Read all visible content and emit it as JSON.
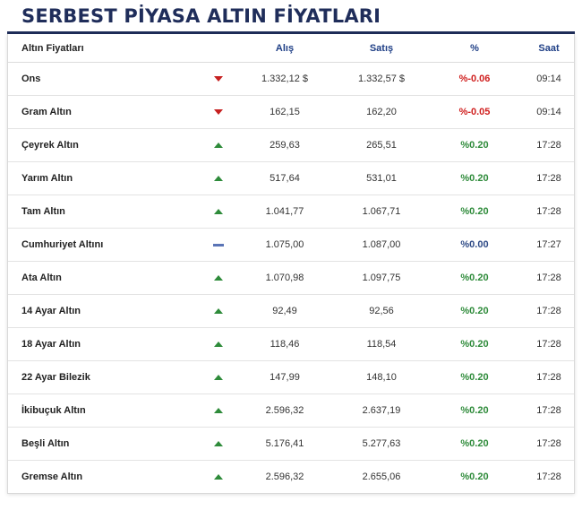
{
  "title": "SERBEST PİYASA ALTIN FİYATLARI",
  "columns": {
    "name": "Altın Fiyatları",
    "buy": "Alış",
    "sell": "Satış",
    "pct": "%",
    "time": "Saat"
  },
  "rows": [
    {
      "name": "Ons",
      "trend": "down",
      "buy": "1.332,12 $",
      "sell": "1.332,57 $",
      "pct": "%-0.06",
      "time": "09:14"
    },
    {
      "name": "Gram Altın",
      "trend": "down",
      "buy": "162,15",
      "sell": "162,20",
      "pct": "%-0.05",
      "time": "09:14"
    },
    {
      "name": "Çeyrek Altın",
      "trend": "up",
      "buy": "259,63",
      "sell": "265,51",
      "pct": "%0.20",
      "time": "17:28"
    },
    {
      "name": "Yarım Altın",
      "trend": "up",
      "buy": "517,64",
      "sell": "531,01",
      "pct": "%0.20",
      "time": "17:28"
    },
    {
      "name": "Tam Altın",
      "trend": "up",
      "buy": "1.041,77",
      "sell": "1.067,71",
      "pct": "%0.20",
      "time": "17:28"
    },
    {
      "name": "Cumhuriyet Altını",
      "trend": "flat",
      "buy": "1.075,00",
      "sell": "1.087,00",
      "pct": "%0.00",
      "time": "17:27"
    },
    {
      "name": "Ata Altın",
      "trend": "up",
      "buy": "1.070,98",
      "sell": "1.097,75",
      "pct": "%0.20",
      "time": "17:28"
    },
    {
      "name": "14 Ayar Altın",
      "trend": "up",
      "buy": "92,49",
      "sell": "92,56",
      "pct": "%0.20",
      "time": "17:28"
    },
    {
      "name": "18 Ayar Altın",
      "trend": "up",
      "buy": "118,46",
      "sell": "118,54",
      "pct": "%0.20",
      "time": "17:28"
    },
    {
      "name": "22 Ayar Bilezik",
      "trend": "up",
      "buy": "147,99",
      "sell": "148,10",
      "pct": "%0.20",
      "time": "17:28"
    },
    {
      "name": "İkibuçuk Altın",
      "trend": "up",
      "buy": "2.596,32",
      "sell": "2.637,19",
      "pct": "%0.20",
      "time": "17:28"
    },
    {
      "name": "Beşli Altın",
      "trend": "up",
      "buy": "5.176,41",
      "sell": "5.277,63",
      "pct": "%0.20",
      "time": "17:28"
    },
    {
      "name": "Gremse Altın",
      "trend": "up",
      "buy": "2.596,32",
      "sell": "2.655,06",
      "pct": "%0.20",
      "time": "17:28"
    }
  ],
  "trend_icons": {
    "up": "triangle-up-icon",
    "down": "triangle-down-icon",
    "flat": "dash-icon"
  },
  "colors": {
    "title": "#1f2d5a",
    "header": "#1f3f86",
    "up": "#2e8b3a",
    "down": "#d0201f",
    "flat": "#2e4a86"
  }
}
